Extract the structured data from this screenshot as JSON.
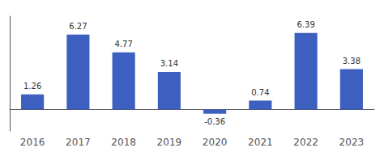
{
  "chart_data": {
    "type": "bar",
    "categories": [
      "2016",
      "2017",
      "2018",
      "2019",
      "2020",
      "2021",
      "2022",
      "2023"
    ],
    "values": [
      1.26,
      6.27,
      4.77,
      3.14,
      -0.36,
      0.74,
      6.39,
      3.38
    ],
    "color": "#3d5fc0",
    "ylim": [
      -1.8,
      7.8
    ],
    "grid": false,
    "data_labels": true,
    "tick_labels": "x"
  }
}
